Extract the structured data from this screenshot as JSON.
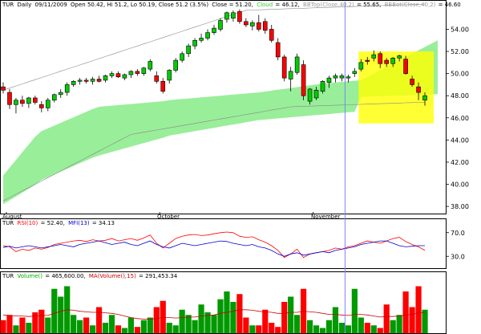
{
  "price_panel": {
    "header": {
      "symbol": "TUR",
      "interval": "Daily",
      "date": "09/11/2009",
      "ohlc": "Open 50.42, Hi 51.2, Lo 50.19, Close 51.2 (3.5%)",
      "close_label": "Close = 51.20,",
      "cloud_label": "Cloud",
      "cloud_value": "= 46.12,",
      "bbtop_label": "BBTop(Close,40,2)",
      "bbtop_value": "= 55.65,",
      "bbbot_label": "BBBot(Close,40,2)",
      "bbbot_value": "= 46.60"
    },
    "y_ticks": [
      "54.00",
      "52.00",
      "50.00",
      "48.00",
      "46.00",
      "44.00",
      "42.00",
      "40.00",
      "38.00"
    ],
    "x_labels": [
      "August",
      "October",
      "November"
    ]
  },
  "rsi_panel": {
    "header": {
      "symbol": "TUR",
      "rsi_label": "RSI(10)",
      "rsi_value": "= 52.40,",
      "mfi_label": "MFI(13)",
      "mfi_value": "= 34.13"
    },
    "y_ticks": [
      "70.0",
      "30.0"
    ]
  },
  "volume_panel": {
    "header": {
      "symbol": "TUR",
      "volume_label": "Volume()",
      "volume_value": "= 465,600.00,",
      "ma_label": "MA(Volume(),15)",
      "ma_value": "= 291,453.34"
    }
  },
  "colors": {
    "up": "#00cc00",
    "down": "#ff0000",
    "cloud": "#99ee99",
    "highlight": "#ffff00",
    "rsi": "#ff0000",
    "mfi": "#0000cc",
    "bbands": "#888888",
    "cursor": "#8080ff",
    "volume_ma": "#cc0000"
  },
  "chart_data": [
    {
      "type": "candlestick",
      "title": "TUR Daily 09/11/2009",
      "ylim": [
        37.5,
        56.5
      ],
      "x_labels": [
        "August",
        "October",
        "November"
      ],
      "candles": [
        [
          48.8,
          49.2,
          48.2,
          48.5
        ],
        [
          48.3,
          48.6,
          46.8,
          47.2
        ],
        [
          47.2,
          47.8,
          46.4,
          47.6
        ],
        [
          47.6,
          48.0,
          47.0,
          47.3
        ],
        [
          47.3,
          47.9,
          46.9,
          47.8
        ],
        [
          47.8,
          48.0,
          47.2,
          47.4
        ],
        [
          47.2,
          47.5,
          46.5,
          46.9
        ],
        [
          46.9,
          47.8,
          46.6,
          47.6
        ],
        [
          47.6,
          48.2,
          47.4,
          48.1
        ],
        [
          48.1,
          48.6,
          47.8,
          48.3
        ],
        [
          48.3,
          49.2,
          48.0,
          49.0
        ],
        [
          49.0,
          49.4,
          48.8,
          49.3
        ],
        [
          49.3,
          49.6,
          49.0,
          49.4
        ],
        [
          49.4,
          49.6,
          49.1,
          49.3
        ],
        [
          49.3,
          49.7,
          49.0,
          49.5
        ],
        [
          49.5,
          49.8,
          49.2,
          49.3
        ],
        [
          49.4,
          49.9,
          49.2,
          49.8
        ],
        [
          49.8,
          50.2,
          49.6,
          50.0
        ],
        [
          50.0,
          50.2,
          49.6,
          49.7
        ],
        [
          49.6,
          50.0,
          49.4,
          49.9
        ],
        [
          49.9,
          50.3,
          49.6,
          50.2
        ],
        [
          50.2,
          50.4,
          49.8,
          50.0
        ],
        [
          50.0,
          50.6,
          49.8,
          50.5
        ],
        [
          50.4,
          51.3,
          50.2,
          51.1
        ],
        [
          49.8,
          50.2,
          49.1,
          49.3
        ],
        [
          49.3,
          49.6,
          48.2,
          48.4
        ],
        [
          49.4,
          50.4,
          49.1,
          50.3
        ],
        [
          50.3,
          51.4,
          50.1,
          51.2
        ],
        [
          51.2,
          52.0,
          51.0,
          51.8
        ],
        [
          51.8,
          52.7,
          51.5,
          52.5
        ],
        [
          52.5,
          53.2,
          52.2,
          53.0
        ],
        [
          53.0,
          53.6,
          52.8,
          53.2
        ],
        [
          53.2,
          54.0,
          53.0,
          53.7
        ],
        [
          53.7,
          54.4,
          53.5,
          54.1
        ],
        [
          54.0,
          55.0,
          53.8,
          54.8
        ],
        [
          54.9,
          55.6,
          54.6,
          55.5
        ],
        [
          55.0,
          55.7,
          54.7,
          55.5
        ],
        [
          55.6,
          55.8,
          54.5,
          54.7
        ],
        [
          54.7,
          55.0,
          54.2,
          54.4
        ],
        [
          54.3,
          54.8,
          53.9,
          54.6
        ],
        [
          54.6,
          55.3,
          53.8,
          54.0
        ],
        [
          54.7,
          55.0,
          53.6,
          53.9
        ],
        [
          54.0,
          54.4,
          52.8,
          53.0
        ],
        [
          52.8,
          53.2,
          51.2,
          51.5
        ],
        [
          51.5,
          51.7,
          49.3,
          49.6
        ],
        [
          49.5,
          50.6,
          48.4,
          50.2
        ],
        [
          50.1,
          51.8,
          49.9,
          51.5
        ],
        [
          50.8,
          51.2,
          47.6,
          48.0
        ],
        [
          47.5,
          48.7,
          47.2,
          48.6
        ],
        [
          47.8,
          48.8,
          47.6,
          48.5
        ],
        [
          48.4,
          49.4,
          48.2,
          49.3
        ],
        [
          49.2,
          49.8,
          48.7,
          49.6
        ],
        [
          49.6,
          50.0,
          49.2,
          49.8
        ],
        [
          49.6,
          50.0,
          49.3,
          49.8
        ],
        [
          49.6,
          49.9,
          49.2,
          49.7
        ],
        [
          50.0,
          50.5,
          49.7,
          50.2
        ],
        [
          50.4,
          51.3,
          50.2,
          51.0
        ],
        [
          51.2,
          51.5,
          50.8,
          51.1
        ],
        [
          51.4,
          52.1,
          51.1,
          51.7
        ],
        [
          51.8,
          52.0,
          50.5,
          50.9
        ],
        [
          51.2,
          51.4,
          50.6,
          50.9
        ],
        [
          50.9,
          51.5,
          50.6,
          51.4
        ],
        [
          51.4,
          51.7,
          51.1,
          51.6
        ],
        [
          51.3,
          51.6,
          49.9,
          50.0
        ],
        [
          49.5,
          49.8,
          48.8,
          49.0
        ],
        [
          48.8,
          49.2,
          47.6,
          48.3
        ],
        [
          47.6,
          48.3,
          47.1,
          48.0
        ]
      ]
    },
    {
      "type": "line",
      "series": [
        {
          "name": "RSI(10)"
        },
        {
          "name": "MFI(13)"
        }
      ],
      "rsi": [
        48,
        46,
        38,
        42,
        40,
        44,
        42,
        45,
        50,
        52,
        54,
        56,
        57,
        55,
        58,
        56,
        57,
        60,
        56,
        58,
        60,
        57,
        61,
        66,
        52,
        44,
        52,
        60,
        64,
        66,
        67,
        65,
        66,
        68,
        70,
        71,
        70,
        64,
        62,
        63,
        58,
        54,
        48,
        40,
        28,
        34,
        42,
        28,
        34,
        36,
        38,
        40,
        44,
        42,
        46,
        48,
        52,
        56,
        54,
        52,
        56,
        60,
        62,
        55,
        50,
        46,
        40
      ],
      "mfi": [
        45,
        47,
        44,
        46,
        48,
        46,
        44,
        46,
        48,
        50,
        48,
        46,
        50,
        52,
        54,
        56,
        53,
        50,
        52,
        54,
        50,
        48,
        52,
        56,
        50,
        46,
        44,
        48,
        52,
        50,
        48,
        50,
        52,
        54,
        56,
        55,
        52,
        50,
        48,
        50,
        46,
        44,
        40,
        34,
        30,
        34,
        36,
        32,
        34,
        36,
        38,
        36,
        40,
        42,
        44,
        46,
        50,
        52,
        54,
        56,
        56,
        52,
        48,
        46,
        47,
        48,
        48
      ],
      "ylim": [
        10,
        90
      ],
      "y_ticks": [
        70,
        30
      ]
    },
    {
      "type": "bar",
      "series": [
        {
          "name": "Volume()"
        },
        {
          "name": "MA(Volume(),15)"
        }
      ],
      "volume": [
        0.25,
        0.35,
        0.15,
        0.3,
        0.2,
        0.4,
        0.45,
        0.3,
        0.85,
        0.7,
        0.9,
        0.35,
        0.25,
        0.3,
        0.15,
        0.5,
        0.2,
        0.35,
        0.15,
        0.1,
        0.3,
        0.12,
        0.25,
        0.3,
        0.5,
        0.62,
        0.2,
        0.15,
        0.45,
        0.35,
        0.25,
        0.55,
        0.4,
        0.35,
        0.65,
        0.8,
        0.6,
        0.75,
        0.3,
        0.15,
        0.15,
        0.45,
        0.2,
        0.12,
        0.6,
        0.7,
        0.35,
        0.85,
        0.25,
        0.15,
        0.1,
        0.25,
        0.5,
        0.2,
        0.15,
        0.85,
        0.3,
        0.2,
        0.15,
        0.1,
        0.55,
        0.25,
        0.35,
        0.8,
        0.5,
        0.9,
        0.45
      ],
      "ma": [
        0.35,
        0.34,
        0.33,
        0.33,
        0.32,
        0.33,
        0.34,
        0.34,
        0.38,
        0.42,
        0.45,
        0.44,
        0.42,
        0.41,
        0.4,
        0.4,
        0.39,
        0.38,
        0.36,
        0.33,
        0.3,
        0.28,
        0.27,
        0.27,
        0.28,
        0.3,
        0.3,
        0.29,
        0.3,
        0.31,
        0.31,
        0.33,
        0.34,
        0.35,
        0.38,
        0.4,
        0.42,
        0.45,
        0.45,
        0.44,
        0.42,
        0.41,
        0.4,
        0.38,
        0.38,
        0.4,
        0.4,
        0.42,
        0.41,
        0.4,
        0.38,
        0.36,
        0.36,
        0.35,
        0.34,
        0.36,
        0.36,
        0.35,
        0.33,
        0.31,
        0.32,
        0.32,
        0.33,
        0.35,
        0.36,
        0.39,
        0.4
      ]
    }
  ]
}
